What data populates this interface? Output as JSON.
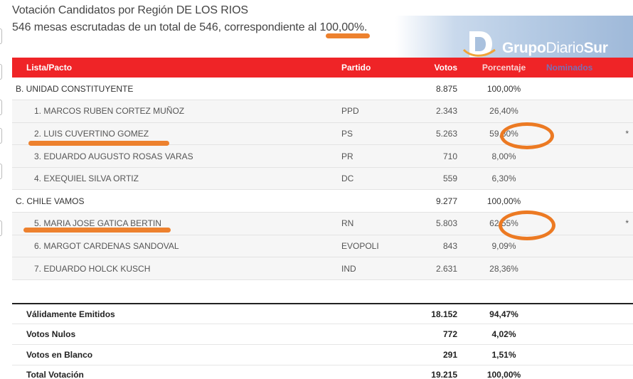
{
  "header": {
    "title": "Votación Candidatos por Región DE LOS RIOS",
    "subtitle": "546 mesas escrutadas de un total de 546, correspondiente al 100,00%."
  },
  "logo": {
    "mark": "D",
    "brand_bold": "Grupo",
    "brand_regular": "Diario",
    "brand_end": "Sur"
  },
  "table": {
    "columns": [
      "Lista/Pacto",
      "Partido",
      "Votos",
      "Porcentaje",
      "Nominados"
    ],
    "rows": [
      {
        "type": "pact",
        "name": "B. UNIDAD CONSTITUYENTE",
        "party": "",
        "votes": "8.875",
        "pct": "100,00%",
        "nom": ""
      },
      {
        "type": "cand",
        "name": "1. MARCOS RUBEN CORTEZ MUÑOZ",
        "party": "PPD",
        "votes": "2.343",
        "pct": "26,40%",
        "nom": ""
      },
      {
        "type": "cand",
        "name": "2. LUIS CUVERTINO GOMEZ",
        "party": "PS",
        "votes": "5.263",
        "pct": "59,30%",
        "nom": "*"
      },
      {
        "type": "cand",
        "name": "3. EDUARDO AUGUSTO ROSAS VARAS",
        "party": "PR",
        "votes": "710",
        "pct": "8,00%",
        "nom": ""
      },
      {
        "type": "cand",
        "name": "4. EXEQUIEL SILVA ORTIZ",
        "party": "DC",
        "votes": "559",
        "pct": "6,30%",
        "nom": ""
      },
      {
        "type": "pact",
        "name": "C. CHILE VAMOS",
        "party": "",
        "votes": "9.277",
        "pct": "100,00%",
        "nom": ""
      },
      {
        "type": "cand",
        "name": "5. MARIA JOSE GATICA BERTIN",
        "party": "RN",
        "votes": "5.803",
        "pct": "62,55%",
        "nom": "*"
      },
      {
        "type": "cand",
        "name": "6. MARGOT CARDENAS SANDOVAL",
        "party": "EVOPOLI",
        "votes": "843",
        "pct": "9,09%",
        "nom": ""
      },
      {
        "type": "cand",
        "name": "7. EDUARDO HOLCK KUSCH",
        "party": "IND",
        "votes": "2.631",
        "pct": "28,36%",
        "nom": ""
      }
    ]
  },
  "summary": [
    {
      "label": "Válidamente Emitidos",
      "votes": "18.152",
      "pct": "94,47%"
    },
    {
      "label": "Votos Nulos",
      "votes": "772",
      "pct": "4,02%"
    },
    {
      "label": "Votos en Blanco",
      "votes": "291",
      "pct": "1,51%"
    },
    {
      "label": "Total Votación",
      "votes": "19.215",
      "pct": "100,00%"
    }
  ],
  "colors": {
    "header_red": "#ef2427",
    "highlight_orange": "#ec7a23",
    "logo_blue": "#9fb9d9"
  }
}
